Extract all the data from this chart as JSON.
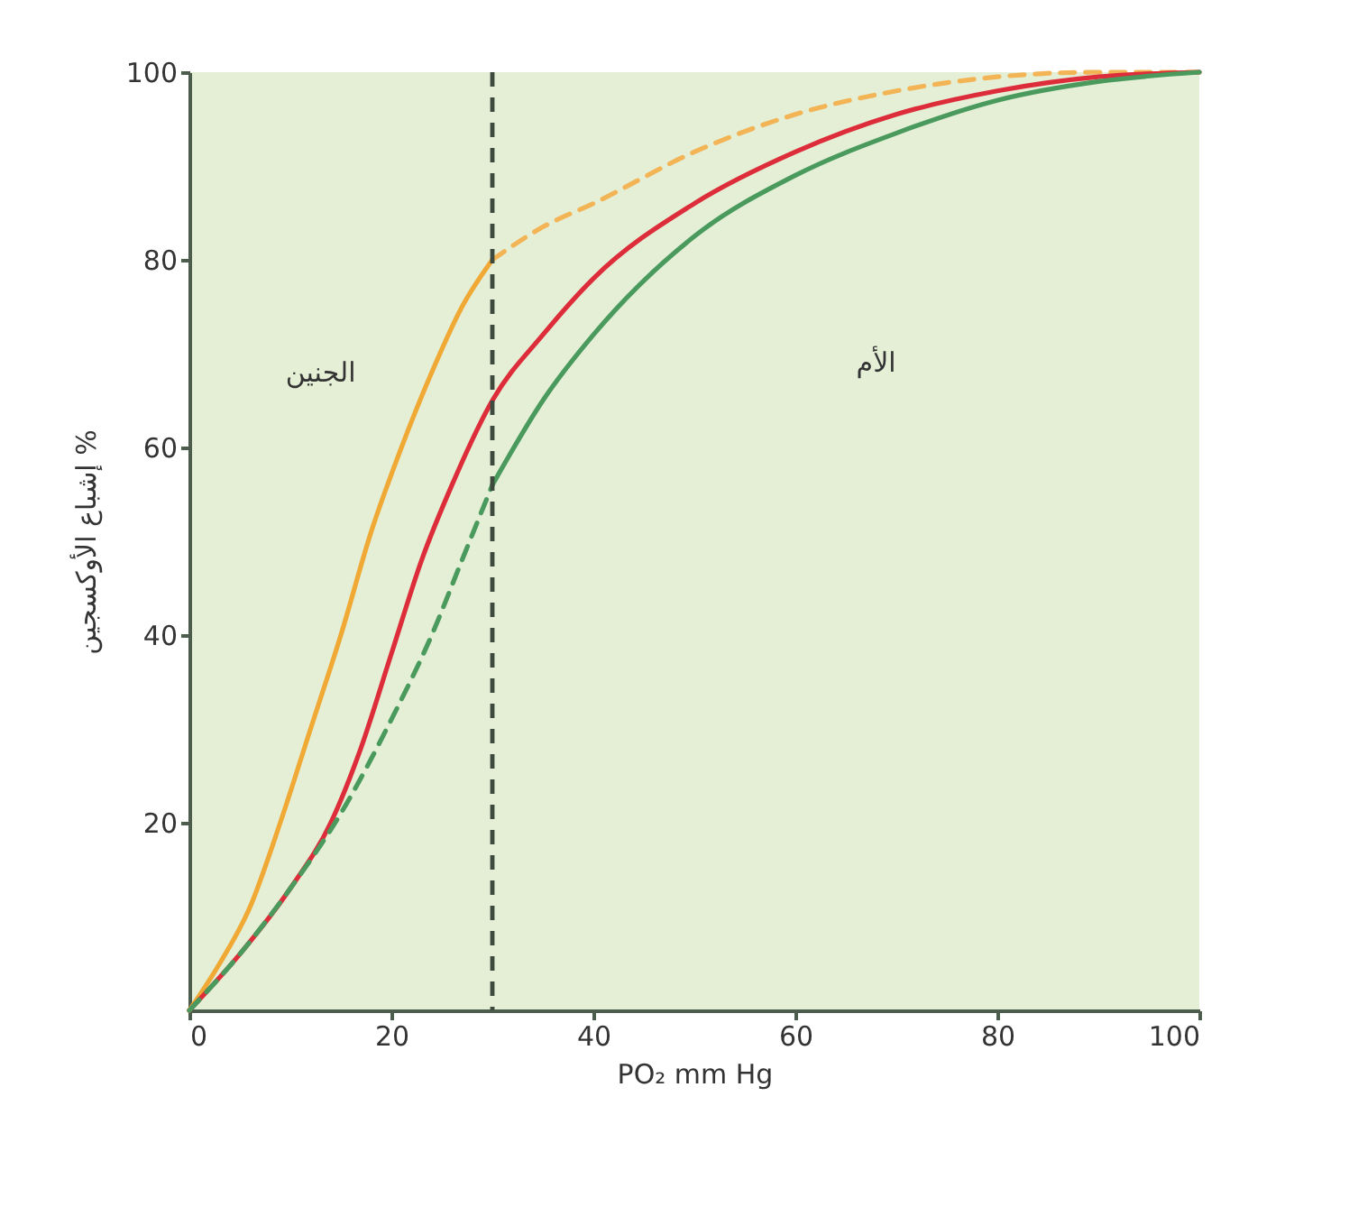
{
  "chart_data": {
    "type": "line",
    "xlabel": "PO₂ mm Hg",
    "ylabel": "إشباع الأوكسجين %",
    "xlim": [
      0,
      100
    ],
    "ylim": [
      0,
      100
    ],
    "xticks": [
      0,
      20,
      40,
      60,
      80,
      100
    ],
    "yticks": [
      20,
      40,
      60,
      80,
      100
    ],
    "grid": false,
    "marker": "none",
    "series": [
      {
        "color": "#f0a935",
        "line_style": "solid",
        "x": [
          0,
          3,
          6,
          9,
          12,
          15,
          18,
          21,
          24,
          27,
          30
        ],
        "values": [
          0,
          5,
          11,
          20,
          30,
          40,
          51,
          60,
          68,
          75,
          80
        ]
      },
      {
        "color": "#f3b455",
        "line_style": "dashed",
        "x": [
          30,
          35,
          40,
          50,
          60,
          70,
          80,
          90,
          100
        ],
        "values": [
          80,
          83.5,
          86,
          91.5,
          95.5,
          98,
          99.5,
          100,
          100
        ]
      },
      {
        "color": "#dd2c3a",
        "line_style": "solid",
        "x": [
          0,
          5,
          10,
          14,
          17,
          20,
          23,
          26,
          30,
          35,
          40,
          50,
          60,
          70,
          80,
          90,
          100
        ],
        "values": [
          0,
          6,
          13,
          20,
          28,
          38,
          48,
          56,
          65,
          72,
          78,
          86,
          91.5,
          95.5,
          98,
          99.5,
          100
        ]
      },
      {
        "color": "#4a9a5e",
        "line_style": "dashed",
        "x": [
          0,
          5,
          10,
          15,
          20,
          24,
          27,
          30
        ],
        "values": [
          0,
          6,
          13,
          21,
          31,
          40,
          48,
          56
        ]
      },
      {
        "color": "#4a9a5e",
        "line_style": "solid",
        "x": [
          30,
          35,
          40,
          50,
          60,
          70,
          80,
          90,
          100
        ],
        "values": [
          56,
          65,
          72,
          82.5,
          89,
          93.5,
          97,
          99,
          100
        ]
      }
    ],
    "ref_lines": [
      {
        "axis": "x",
        "value": 30,
        "color": "#3d4a3d",
        "line_style": "dashed"
      }
    ],
    "annotations": [
      "الجنين",
      "الأم"
    ]
  }
}
